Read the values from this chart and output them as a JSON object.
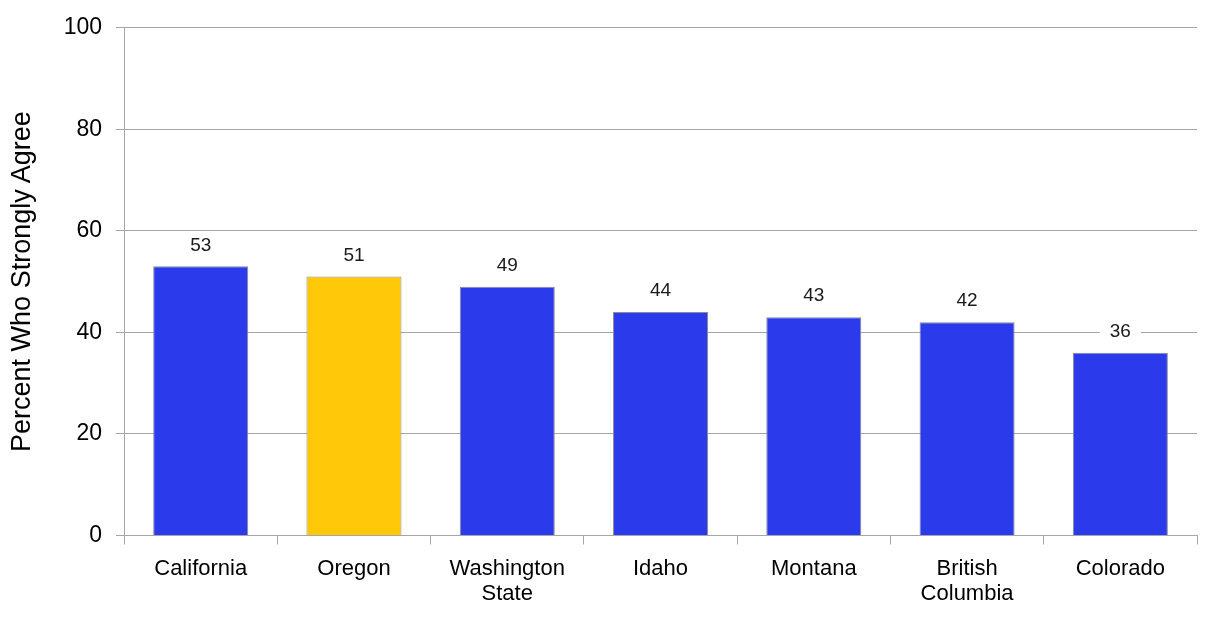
{
  "chart_data": {
    "type": "bar",
    "ylabel": "Percent Who Strongly Agree",
    "categories": [
      "California",
      "Oregon",
      "Washington State",
      "Idaho",
      "Montana",
      "British Columbia",
      "Colorado"
    ],
    "values": [
      53,
      51,
      49,
      44,
      43,
      42,
      36
    ],
    "colors": [
      "#2b3bec",
      "#ffc808",
      "#2b3bec",
      "#2b3bec",
      "#2b3bec",
      "#2b3bec",
      "#2b3bec"
    ],
    "ylim": [
      0,
      100
    ],
    "yticks": [
      0,
      20,
      40,
      60,
      80,
      100
    ],
    "grid": "y",
    "data_labels": true
  }
}
